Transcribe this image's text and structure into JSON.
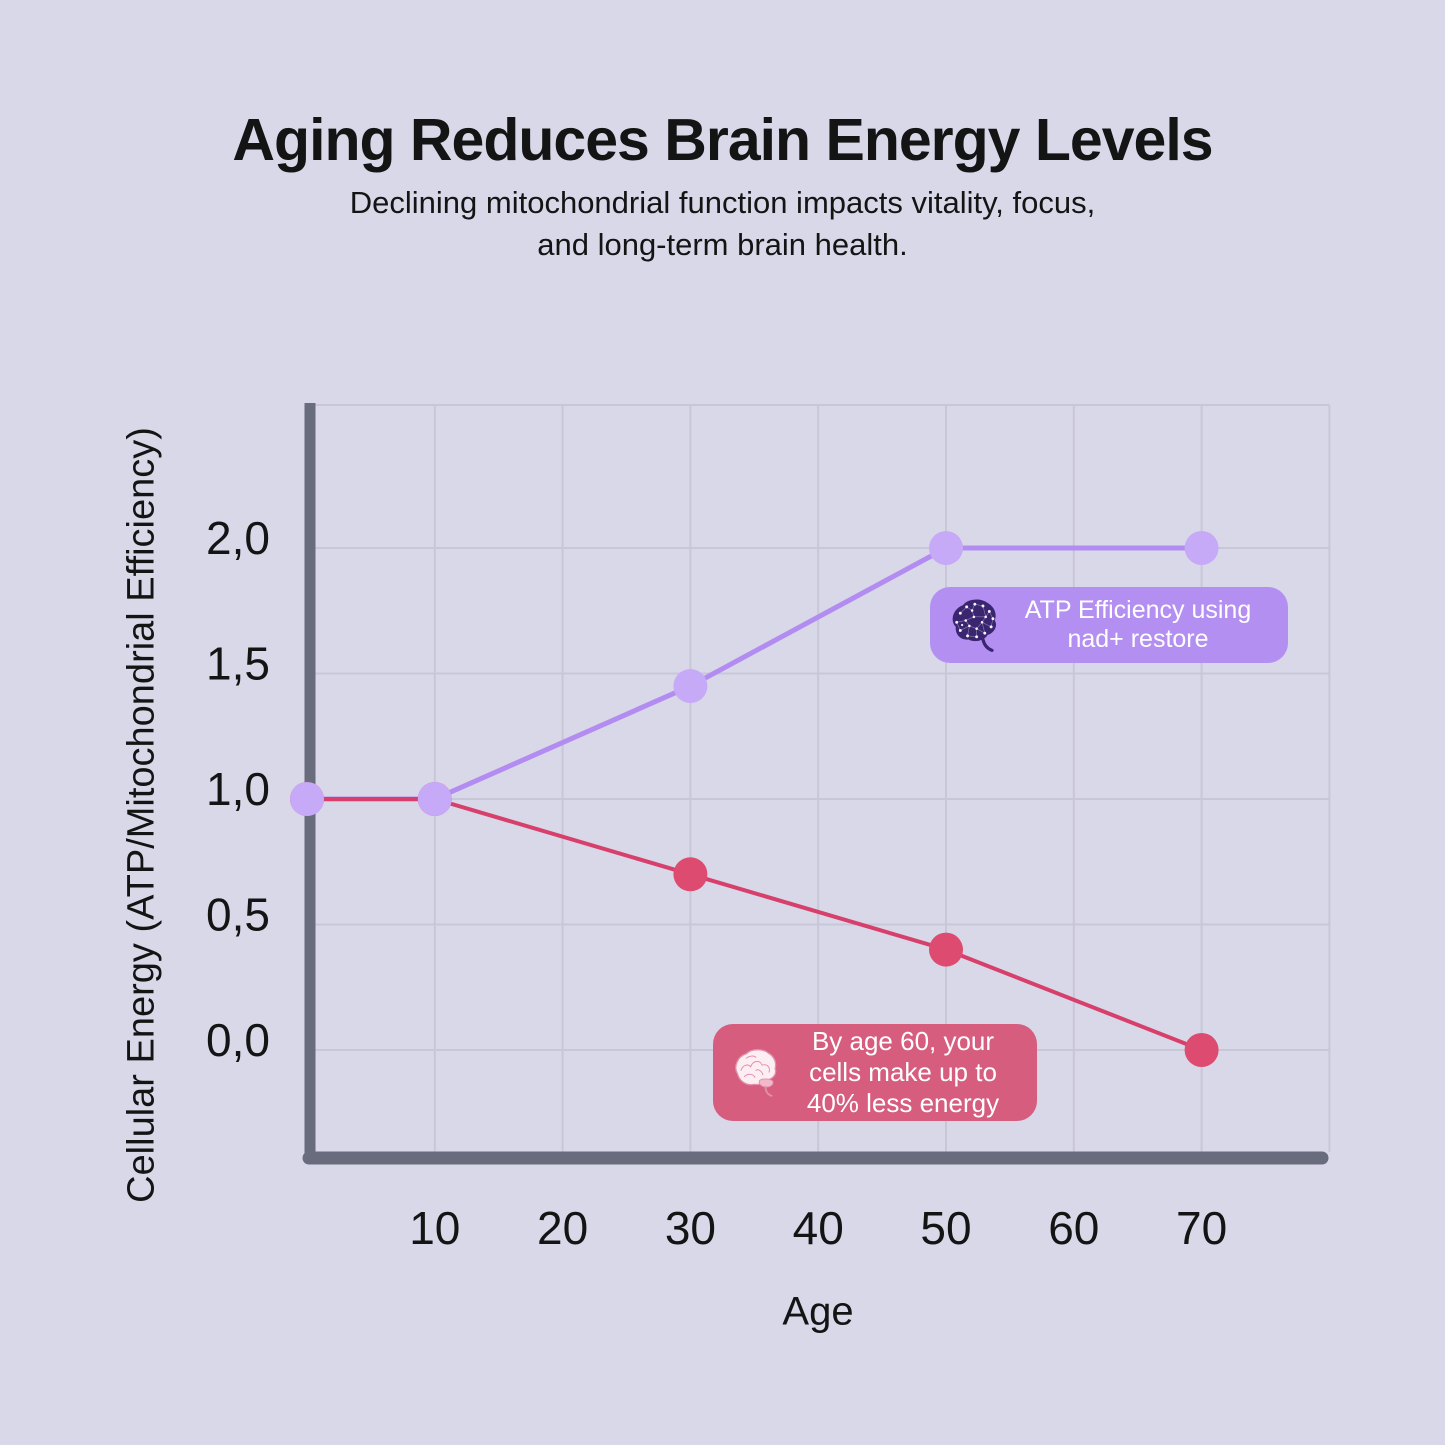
{
  "header": {
    "title": "Aging Reduces Brain Energy Levels",
    "subtitle_lines": [
      "Declining mitochondrial function impacts vitality, focus,",
      "and long-term brain health."
    ]
  },
  "chart_data": {
    "type": "line",
    "xlabel": "Age",
    "ylabel": "Cellular Energy (ATP/Mitochondrial Efficiency)",
    "xlim": [
      0,
      80
    ],
    "ylim": [
      -0.43,
      2.57
    ],
    "grid": true,
    "x_ticks": [
      10,
      20,
      30,
      40,
      50,
      60,
      70
    ],
    "x_grid": [
      10,
      20,
      30,
      40,
      50,
      60,
      70,
      80
    ],
    "y_ticks": [
      {
        "value": 0.0,
        "label": "0,0"
      },
      {
        "value": 0.5,
        "label": "0,5"
      },
      {
        "value": 1.0,
        "label": "1,0"
      },
      {
        "value": 1.5,
        "label": "1,5"
      },
      {
        "value": 2.0,
        "label": "2,0"
      }
    ],
    "series": [
      {
        "id": "atp-with-nad-restore",
        "x": [
          0,
          10,
          30,
          50,
          70
        ],
        "y": [
          1.0,
          1.0,
          1.45,
          2.0,
          2.0
        ],
        "color": "#b28cf0",
        "marker_color": "#c7aaf7"
      },
      {
        "id": "declining-cellular-energy",
        "x": [
          0,
          10,
          30,
          50,
          70
        ],
        "y": [
          1.0,
          1.0,
          0.7,
          0.4,
          0.0
        ],
        "color": "#d6406a",
        "marker_color": "#dd4b70"
      }
    ],
    "annotations": [
      {
        "id": "atp-efficiency-callout",
        "lines": [
          "ATP Efficiency using",
          "nad+ restore"
        ],
        "bg": "#b48ff2",
        "text_color": "#ffffff"
      },
      {
        "id": "age60-energy-callout",
        "lines": [
          "By age 60, your",
          "cells make up to",
          "40% less energy"
        ],
        "bg": "#d65d7e",
        "text_color": "#ffffff"
      }
    ]
  },
  "colors": {
    "background": "#d9d8e9",
    "grid": "#c8c7d7",
    "axis": "#686c7c",
    "text": "#141414"
  }
}
